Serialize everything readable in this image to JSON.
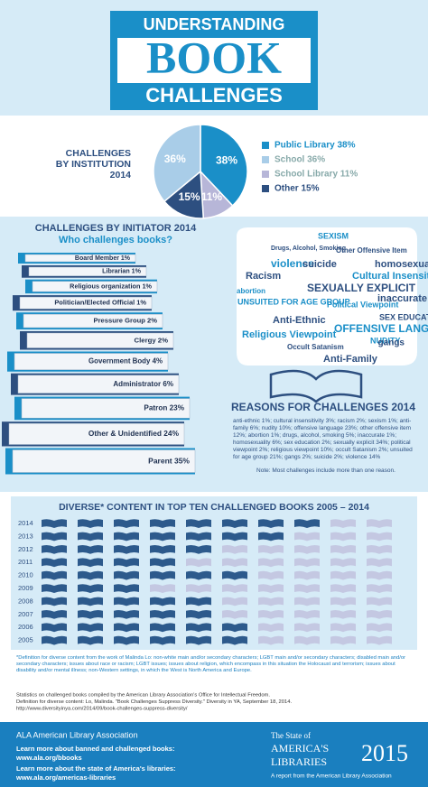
{
  "header": {
    "line1": "UNDERSTANDING",
    "line2": "BOOK",
    "line3": "CHALLENGES"
  },
  "chart_data": {
    "type": "pie",
    "title": "CHALLENGES BY INSTITUTION 2014",
    "categories": [
      "Public Library",
      "School Library",
      "Other",
      "School"
    ],
    "values": [
      38,
      11,
      15,
      36
    ],
    "value_labels": [
      "38%",
      "11%",
      "15%",
      "36%"
    ],
    "colors": [
      "#1a8fc8",
      "#b7b6d8",
      "#2d4f80",
      "#a9cde8"
    ],
    "legend": [
      {
        "label": "Public Library 38%",
        "color": "#1a8fc8"
      },
      {
        "label": "School 36%",
        "color": "#a9cde8"
      },
      {
        "label": "School Library 11%",
        "color": "#b7b6d8"
      },
      {
        "label": "Other 15%",
        "color": "#2d4f80"
      }
    ]
  },
  "initiators": {
    "title": "CHALLENGES BY INITIATOR 2014",
    "subtitle": "Who challenges books?",
    "items": [
      "Board Member 1%",
      "Librarian 1%",
      "Religious organization 1%",
      "Politician/Elected Official 1%",
      "Pressure Group 2%",
      "Clergy 2%",
      "Government Body 4%",
      "Administrator 6%",
      "Patron 23%",
      "Other & Unidentified 24%",
      "Parent 35%"
    ]
  },
  "reasons": {
    "words": [
      "SEXISM",
      "Drugs, Alcohol, Smoking",
      "Other Offensive Item",
      "homosexuality",
      "violence",
      "suicide",
      "Racism",
      "Cultural Insensitivity",
      "abortion",
      "SEXUALLY EXPLICIT",
      "UNSUITED FOR AGE GROUP",
      "Political Viewpoint",
      "inaccurate",
      "Anti-Ethnic",
      "SEX EDUCATION",
      "OFFENSIVE LANGUAGE",
      "Religious Viewpoint",
      "NUDITY",
      "Occult Satanism",
      "gangs",
      "Anti-Family"
    ],
    "title": "REASONS FOR CHALLENGES 2014",
    "text": "anti-ethnic 1%; cultural insensitivity 3%; racism 2%; sexism 1%; anti-family 6%; nudity 10%; offensive language 23%; other offensive item 12%; abortion 1%; drugs, alcohol, smoking 5%; inaccurate 1%; homosexuality 6%; sex education 2%; sexually explicit 34%; political viewpoint 2%; religious viewpoint 10%; occult Satanism 2%; unsuited for age group 21%; gangs 2%; suicide 2%; violence 14%",
    "note": "Note: Most challenges include more than one reason."
  },
  "diverse": {
    "title": "DIVERSE* CONTENT IN TOP TEN CHALLENGED BOOKS 2005 – 2014",
    "years": [
      "2014",
      "2013",
      "2012",
      "2011",
      "2010",
      "2009",
      "2008",
      "2007",
      "2006",
      "2005"
    ],
    "diverse_counts": [
      8,
      7,
      5,
      4,
      6,
      3,
      5,
      5,
      6,
      6
    ],
    "footnote": "*Definition for diverse content from the work of Malinda Lo: non-white main and/or secondary characters; LGBT main and/or secondary characters; disabled main and/or secondary characters; issues about race or racism; LGBT issues; issues about religion, which encompass in this situation the Holocaust and terrorism; issues about disability and/or mental illness; non-Western settings, in which the West is North America and Europe."
  },
  "sources": [
    "Statistics on challenged books compiled by the American Library Association's Office for Intellectual Freedom.",
    "Definition for diverse content: Lo, Malinda. \"Book Challenges Suppress Diversity.\" Diversity in YA, September 18, 2014.",
    "http://www.diversityinya.com/2014/09/book-challenges-suppress-diversity/"
  ],
  "footer": {
    "org": "ALA American Library Association",
    "link1_text": "Learn more about banned and challenged books:",
    "link1": "www.ala.org/bbooks",
    "link2_text": "Learn more about the state of America's libraries:",
    "link2": "www.ala.org/americas-libraries",
    "report1": "The State of",
    "report2": "AMERICA'S",
    "report3": "LIBRARIES",
    "year": "2015",
    "report4": "A report from the American Library Association"
  }
}
